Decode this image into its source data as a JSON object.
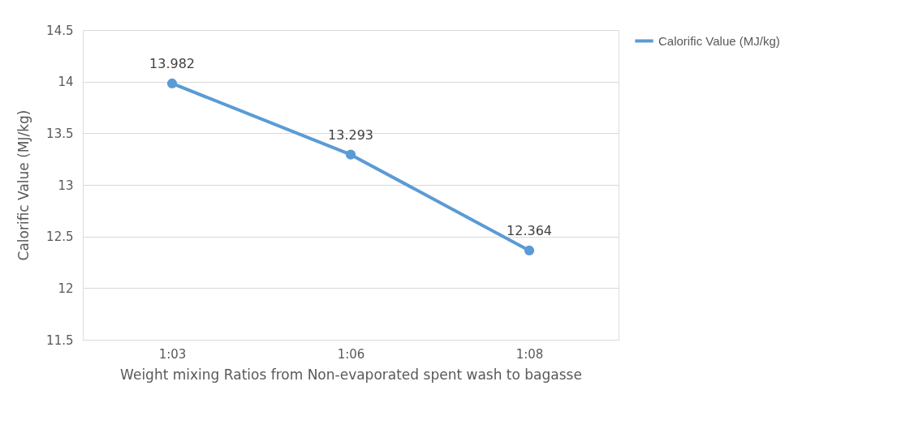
{
  "chart_data": {
    "type": "line",
    "xlabel": "Weight mixing Ratios from Non-evaporated spent wash to bagasse",
    "ylabel": "Calorific Value (MJ/kg)",
    "categories": [
      "1:03",
      "1:06",
      "1:08"
    ],
    "series": [
      {
        "name": "Calorific Value (MJ/kg)",
        "color": "#5b9bd5",
        "values": [
          13.982,
          13.293,
          12.364
        ]
      }
    ],
    "ylim": [
      11.5,
      14.5
    ],
    "yticks": [
      11.5,
      12,
      12.5,
      13,
      13.5,
      14,
      14.5
    ],
    "grid": "y",
    "legend": "right",
    "marker": "circle",
    "line_style": "solid",
    "data_labels": true
  }
}
